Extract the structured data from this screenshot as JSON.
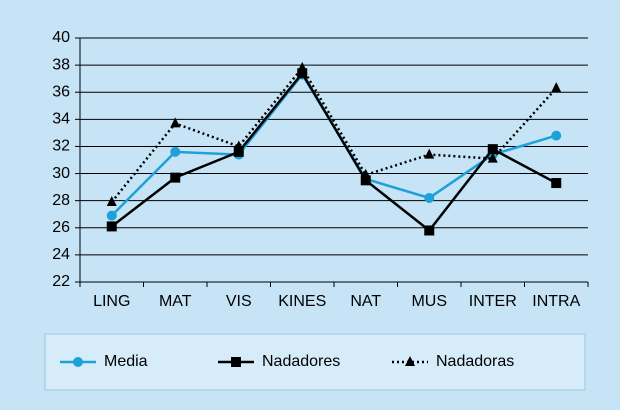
{
  "chart_data": {
    "type": "line",
    "categories": [
      "LING",
      "MAT",
      "VIS",
      "KINES",
      "NAT",
      "MUS",
      "INTER",
      "INTRA"
    ],
    "series": [
      {
        "name": "Media",
        "color": "#1ea0d8",
        "marker": "circle",
        "dash": "solid",
        "values": [
          26.9,
          31.6,
          31.4,
          37.3,
          29.6,
          28.2,
          31.4,
          32.8
        ]
      },
      {
        "name": "Nadadores",
        "color": "#000000",
        "marker": "square",
        "dash": "solid",
        "values": [
          26.1,
          29.7,
          31.6,
          37.4,
          29.5,
          25.8,
          31.8,
          29.3
        ]
      },
      {
        "name": "Nadadoras",
        "color": "#000000",
        "marker": "triangle",
        "dash": "dotted",
        "values": [
          27.9,
          33.7,
          32.0,
          37.8,
          29.9,
          31.4,
          31.1,
          36.3
        ]
      }
    ],
    "ylim": [
      22,
      40
    ],
    "yticks": [
      22,
      24,
      26,
      28,
      30,
      32,
      34,
      36,
      38,
      40
    ],
    "grid": true,
    "legend": "bottom"
  }
}
